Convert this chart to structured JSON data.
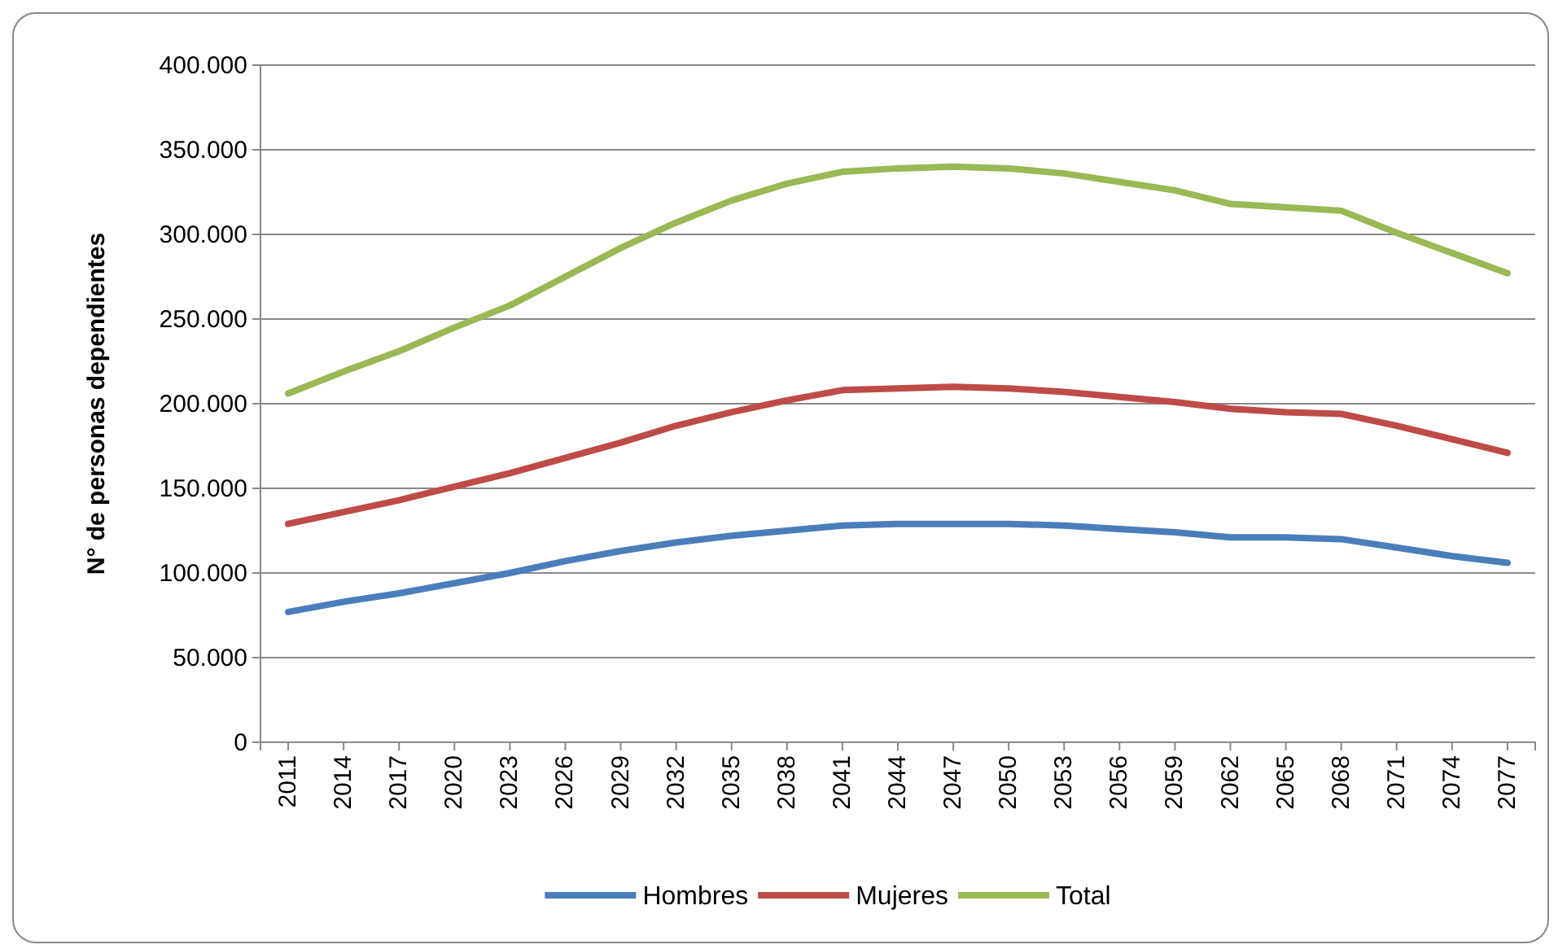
{
  "chart_data": {
    "type": "line",
    "ylabel": "N° de personas dependientes",
    "categories": [
      "2011",
      "2014",
      "2017",
      "2020",
      "2023",
      "2026",
      "2029",
      "2032",
      "2035",
      "2038",
      "2041",
      "2044",
      "2047",
      "2050",
      "2053",
      "2056",
      "2059",
      "2062",
      "2065",
      "2068",
      "2071",
      "2074",
      "2077"
    ],
    "series": [
      {
        "name": "Hombres",
        "color": "#4a7ebb",
        "values": [
          77000,
          83000,
          88000,
          94000,
          100000,
          107000,
          113000,
          118000,
          122000,
          125000,
          128000,
          129000,
          129000,
          129000,
          128000,
          126000,
          124000,
          121000,
          121000,
          120000,
          115000,
          110000,
          106000
        ]
      },
      {
        "name": "Mujeres",
        "color": "#be4b48",
        "values": [
          129000,
          136000,
          143000,
          151000,
          159000,
          168000,
          177000,
          187000,
          195000,
          202000,
          208000,
          209000,
          210000,
          209000,
          207000,
          204000,
          201000,
          197000,
          195000,
          194000,
          187000,
          179000,
          171000
        ]
      },
      {
        "name": "Total",
        "color": "#98b954",
        "values": [
          206000,
          219000,
          231000,
          245000,
          258000,
          275000,
          292000,
          307000,
          320000,
          330000,
          337000,
          339000,
          340000,
          339000,
          336000,
          331000,
          326000,
          318000,
          316000,
          314000,
          301000,
          289000,
          277000
        ]
      }
    ],
    "ylim": [
      0,
      400000
    ],
    "yticks": [
      0,
      {
        "value": 50000,
        "label": "50.000"
      },
      {
        "value": 100000,
        "label": "100.000"
      },
      {
        "value": 150000,
        "label": "150.000"
      },
      {
        "value": 200000,
        "label": "200.000"
      },
      {
        "value": 250000,
        "label": "250.000"
      },
      {
        "value": 300000,
        "label": "300.000"
      },
      {
        "value": 350000,
        "label": "350.000"
      },
      {
        "value": 400000,
        "label": "400.000"
      }
    ],
    "grid": "y",
    "legend": "bottom",
    "marker": "none",
    "line_style": "solid"
  }
}
